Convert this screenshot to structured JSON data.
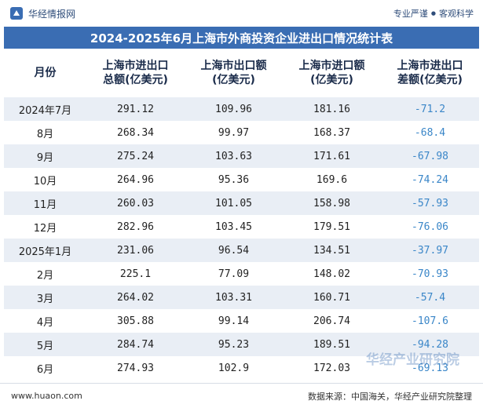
{
  "header": {
    "brand_name": "华经情报网",
    "tagline_left": "专业严谨",
    "tagline_sep": "●",
    "tagline_right": "客观科学"
  },
  "title": "2024-2025年6月上海市外商投资企业进出口情况统计表",
  "columns": [
    "月份",
    "上海市进出口\n总额(亿美元)",
    "上海市出口额\n(亿美元)",
    "上海市进口额\n(亿美元)",
    "上海市进出口\n差额(亿美元)"
  ],
  "rows": [
    [
      "2024年7月",
      "291.12",
      "109.96",
      "181.16",
      "-71.2"
    ],
    [
      "8月",
      "268.34",
      "99.97",
      "168.37",
      "-68.4"
    ],
    [
      "9月",
      "275.24",
      "103.63",
      "171.61",
      "-67.98"
    ],
    [
      "10月",
      "264.96",
      "95.36",
      "169.6",
      "-74.24"
    ],
    [
      "11月",
      "260.03",
      "101.05",
      "158.98",
      "-57.93"
    ],
    [
      "12月",
      "282.96",
      "103.45",
      "179.51",
      "-76.06"
    ],
    [
      "2025年1月",
      "231.06",
      "96.54",
      "134.51",
      "-37.97"
    ],
    [
      "2月",
      "225.1",
      "77.09",
      "148.02",
      "-70.93"
    ],
    [
      "3月",
      "264.02",
      "103.31",
      "160.71",
      "-57.4"
    ],
    [
      "4月",
      "305.88",
      "99.14",
      "206.74",
      "-107.6"
    ],
    [
      "5月",
      "284.74",
      "95.23",
      "189.51",
      "-94.28"
    ],
    [
      "6月",
      "274.93",
      "102.9",
      "172.03",
      "-69.13"
    ]
  ],
  "watermark": "华经产业研究院",
  "footer": {
    "website": "www.huaon.com",
    "source": "数据来源：中国海关，华经产业研究院整理"
  },
  "colors": {
    "title_bg": "#3a6db3",
    "row_shade": "#e9eef5",
    "negative_text": "#3a86c8"
  }
}
